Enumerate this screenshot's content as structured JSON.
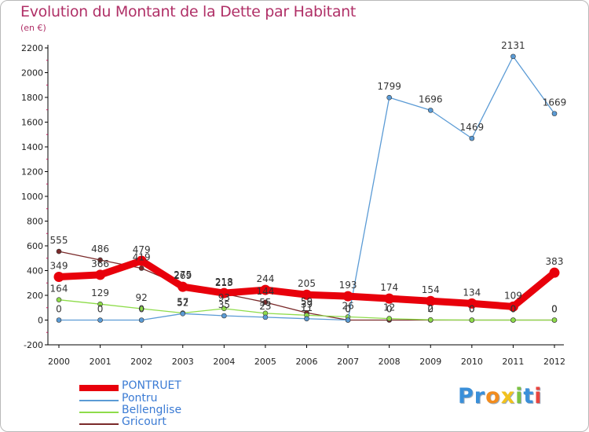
{
  "title": "Evolution du Montant de la Dette par Habitant",
  "unit": "(en €)",
  "logo": {
    "letters": [
      {
        "ch": "P",
        "color": "#3a8fd9"
      },
      {
        "ch": "r",
        "color": "#3a8fd9"
      },
      {
        "ch": "o",
        "color": "#f28c1e"
      },
      {
        "ch": "x",
        "color": "#f2c21e"
      },
      {
        "ch": "i",
        "color": "#7cc242"
      },
      {
        "ch": "t",
        "color": "#3a8fd9"
      },
      {
        "ch": "i",
        "color": "#e9453f"
      }
    ]
  },
  "chart_data": {
    "type": "line",
    "x": [
      "2000",
      "2001",
      "2002",
      "2003",
      "2004",
      "2005",
      "2006",
      "2007",
      "2008",
      "2009",
      "2010",
      "2011",
      "2012"
    ],
    "ylim": [
      -200,
      2200
    ],
    "yticks": [
      "-200",
      "0",
      "200",
      "400",
      "600",
      "800",
      "1000",
      "1200",
      "1400",
      "1600",
      "1800",
      "2000",
      "2200"
    ],
    "grid": false,
    "legend_position": "bottom-left",
    "series": [
      {
        "name": "PONTRUET",
        "color": "#e8000b",
        "values": [
          349,
          366,
          479,
          269,
          218,
          244,
          205,
          193,
          174,
          154,
          134,
          109,
          383
        ],
        "labels": [
          "349",
          "366",
          "479",
          "269",
          "218",
          "244",
          "205",
          "193",
          "174",
          "154",
          "134",
          "109",
          "383"
        ]
      },
      {
        "name": "Pontru",
        "color": "#5b9bd5",
        "values": [
          0,
          0,
          0,
          52,
          35,
          23,
          11,
          0,
          1799,
          1696,
          1469,
          2131,
          1669
        ],
        "labels": [
          "0",
          "0",
          "0",
          "52",
          "35",
          "23",
          "11",
          "0",
          "1799",
          "1696",
          "1469",
          "2131",
          "1669"
        ]
      },
      {
        "name": "Bellenglise",
        "color": "#8edc4a",
        "values": [
          164,
          129,
          92,
          57,
          93,
          55,
          39,
          26,
          12,
          2,
          0,
          0,
          0
        ],
        "labels": [
          "164",
          "129",
          "92",
          "57",
          "93",
          "55",
          "39",
          "26",
          "12",
          "2",
          "0",
          "0",
          "0"
        ]
      },
      {
        "name": "Gricourt",
        "color": "#7a2a2a",
        "values": [
          555,
          486,
          419,
          275,
          213,
          144,
          59,
          0,
          0,
          0,
          0,
          0,
          0
        ],
        "labels": [
          "555",
          "486",
          "419",
          "275",
          "213",
          "144",
          "59",
          "0",
          "0",
          "0",
          "0",
          "0",
          "0"
        ]
      }
    ]
  }
}
